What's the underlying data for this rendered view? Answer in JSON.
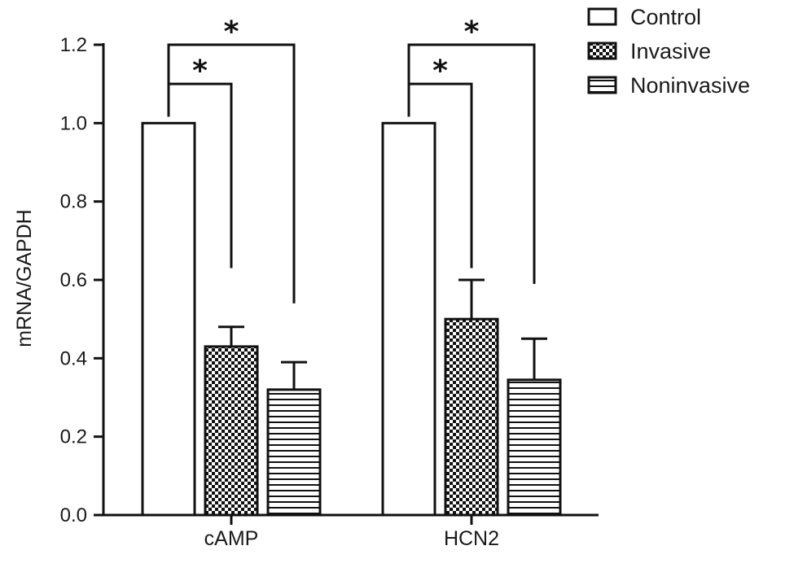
{
  "chart_data": {
    "type": "bar",
    "title": "",
    "xlabel": "",
    "ylabel": "mRNA/GAPDH",
    "ylim": [
      0,
      1.2
    ],
    "yticks": [
      "0.0",
      "0.2",
      "0.4",
      "0.6",
      "0.8",
      "1.0",
      "1.2"
    ],
    "categories": [
      "cAMP",
      "HCN2"
    ],
    "series": [
      {
        "name": "Control",
        "pattern": "white",
        "values": [
          1.0,
          1.0
        ],
        "errors": [
          0,
          0
        ]
      },
      {
        "name": "Invasive",
        "pattern": "checker",
        "values": [
          0.43,
          0.5
        ],
        "errors": [
          0.05,
          0.1
        ]
      },
      {
        "name": "Noninvasive",
        "pattern": "hstripes",
        "values": [
          0.32,
          0.345
        ],
        "errors": [
          0.07,
          0.105
        ]
      }
    ],
    "significance": [
      {
        "category": 0,
        "from": "Control",
        "to": "Invasive",
        "level": 1.1,
        "drop_to": 0.63,
        "label": "*"
      },
      {
        "category": 0,
        "from": "Control",
        "to": "Noninvasive",
        "level": 1.2,
        "drop_to": 0.54,
        "label": "*"
      },
      {
        "category": 1,
        "from": "Control",
        "to": "Invasive",
        "level": 1.1,
        "drop_to": 0.63,
        "label": "*"
      },
      {
        "category": 1,
        "from": "Control",
        "to": "Noninvasive",
        "level": 1.2,
        "drop_to": 0.59,
        "label": "*"
      }
    ],
    "legend": {
      "position": "top-right"
    },
    "grid": false,
    "colors": {
      "stroke": "#111111",
      "fill": "#ffffff"
    }
  }
}
